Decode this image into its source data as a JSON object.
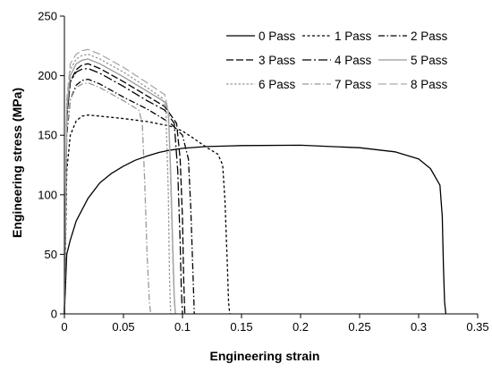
{
  "chart_data": {
    "type": "line",
    "title": "",
    "xlabel": "Engineering strain",
    "ylabel": "Engineering stress (MPa)",
    "xlim": [
      0,
      0.35
    ],
    "ylim": [
      0,
      250
    ],
    "x_ticks": [
      0,
      0.05,
      0.1,
      0.15,
      0.2,
      0.25,
      0.3,
      0.35
    ],
    "x_tick_labels": [
      "0",
      "0.05",
      "0.1",
      "0.15",
      "0.2",
      "0.25",
      "0.3",
      "0.35"
    ],
    "y_ticks": [
      0,
      50,
      100,
      150,
      200,
      250
    ],
    "y_tick_labels": [
      "0",
      "50",
      "100",
      "150",
      "200",
      "250"
    ],
    "grid": false,
    "legend_position": "top-right",
    "series": [
      {
        "name": "0 Pass",
        "color": "#000000",
        "dash": "solid",
        "x": [
          0,
          0.002,
          0.005,
          0.01,
          0.02,
          0.03,
          0.04,
          0.05,
          0.06,
          0.07,
          0.08,
          0.09,
          0.1,
          0.12,
          0.15,
          0.2,
          0.25,
          0.28,
          0.3,
          0.31,
          0.318,
          0.32,
          0.321,
          0.322,
          0.323
        ],
        "y": [
          0,
          50,
          62,
          78,
          97,
          110,
          118,
          124,
          129,
          132.5,
          135.5,
          137.5,
          139,
          140.5,
          141.3,
          141.6,
          139.5,
          136,
          130,
          122,
          108,
          82,
          40,
          10,
          0
        ]
      },
      {
        "name": "1 Pass",
        "color": "#000000",
        "dash": "3,2.5",
        "x": [
          0,
          0.002,
          0.005,
          0.01,
          0.015,
          0.02,
          0.03,
          0.05,
          0.07,
          0.09,
          0.1,
          0.11,
          0.12,
          0.13,
          0.134,
          0.136,
          0.138,
          0.139,
          0.14
        ],
        "y": [
          0,
          120,
          150,
          162,
          166,
          167,
          166,
          164,
          161.5,
          157.5,
          153.5,
          147,
          140,
          134,
          125,
          95,
          40,
          10,
          0
        ]
      },
      {
        "name": "2 Pass",
        "color": "#000000",
        "dash": "7,2.5,1.5,2.5",
        "x": [
          0,
          0.002,
          0.005,
          0.01,
          0.015,
          0.02,
          0.03,
          0.05,
          0.07,
          0.08,
          0.09,
          0.1,
          0.105,
          0.107,
          0.109,
          0.11
        ],
        "y": [
          0,
          150,
          180,
          192,
          196,
          197,
          193,
          182,
          172,
          166,
          160,
          150,
          130,
          90,
          30,
          0
        ]
      },
      {
        "name": "3 Pass",
        "color": "#000000",
        "dash": "8,3",
        "x": [
          0,
          0.002,
          0.005,
          0.01,
          0.015,
          0.02,
          0.03,
          0.05,
          0.07,
          0.085,
          0.095,
          0.098,
          0.1,
          0.101,
          0.102
        ],
        "y": [
          0,
          165,
          195,
          205,
          209,
          210,
          206,
          195,
          183,
          174,
          160,
          130,
          80,
          30,
          0
        ]
      },
      {
        "name": "4 Pass",
        "color": "#000000",
        "dash": "10,3,2,3",
        "x": [
          0,
          0.002,
          0.005,
          0.01,
          0.015,
          0.02,
          0.03,
          0.05,
          0.07,
          0.085,
          0.093,
          0.096,
          0.098,
          0.099,
          0.1
        ],
        "y": [
          0,
          165,
          195,
          203,
          205.5,
          206,
          202,
          191,
          179,
          171,
          160,
          120,
          60,
          20,
          0
        ]
      },
      {
        "name": "5 Pass",
        "color": "#999999",
        "dash": "solid",
        "x": [
          0,
          0.002,
          0.005,
          0.01,
          0.015,
          0.02,
          0.03,
          0.05,
          0.07,
          0.085,
          0.088,
          0.09,
          0.092,
          0.093,
          0.094
        ],
        "y": [
          0,
          170,
          200,
          210,
          213,
          214,
          210,
          199,
          187,
          178,
          170,
          120,
          50,
          15,
          0
        ]
      },
      {
        "name": "6 Pass",
        "color": "#999999",
        "dash": "2.5,2",
        "x": [
          0,
          0.002,
          0.005,
          0.01,
          0.015,
          0.02,
          0.03,
          0.05,
          0.07,
          0.083,
          0.086,
          0.088,
          0.089,
          0.09
        ],
        "y": [
          0,
          175,
          205,
          214,
          217,
          218,
          214,
          203,
          190,
          181,
          170,
          100,
          30,
          0
        ]
      },
      {
        "name": "7 Pass",
        "color": "#999999",
        "dash": "7,2.5,1.5,2.5",
        "x": [
          0,
          0.002,
          0.005,
          0.01,
          0.015,
          0.02,
          0.03,
          0.05,
          0.063,
          0.066,
          0.068,
          0.07,
          0.072,
          0.073
        ],
        "y": [
          0,
          155,
          180,
          190,
          193,
          194,
          190,
          179,
          171,
          160,
          110,
          50,
          10,
          0
        ]
      },
      {
        "name": "8 Pass",
        "color": "#aaaaaa",
        "dash": "9,3.5",
        "x": [
          0,
          0.002,
          0.005,
          0.01,
          0.015,
          0.02,
          0.03,
          0.05,
          0.07,
          0.085,
          0.088,
          0.09,
          0.092,
          0.093,
          0.094
        ],
        "y": [
          0,
          180,
          210,
          218,
          221,
          222,
          218,
          207,
          194,
          184,
          170,
          110,
          40,
          10,
          0
        ]
      }
    ]
  }
}
